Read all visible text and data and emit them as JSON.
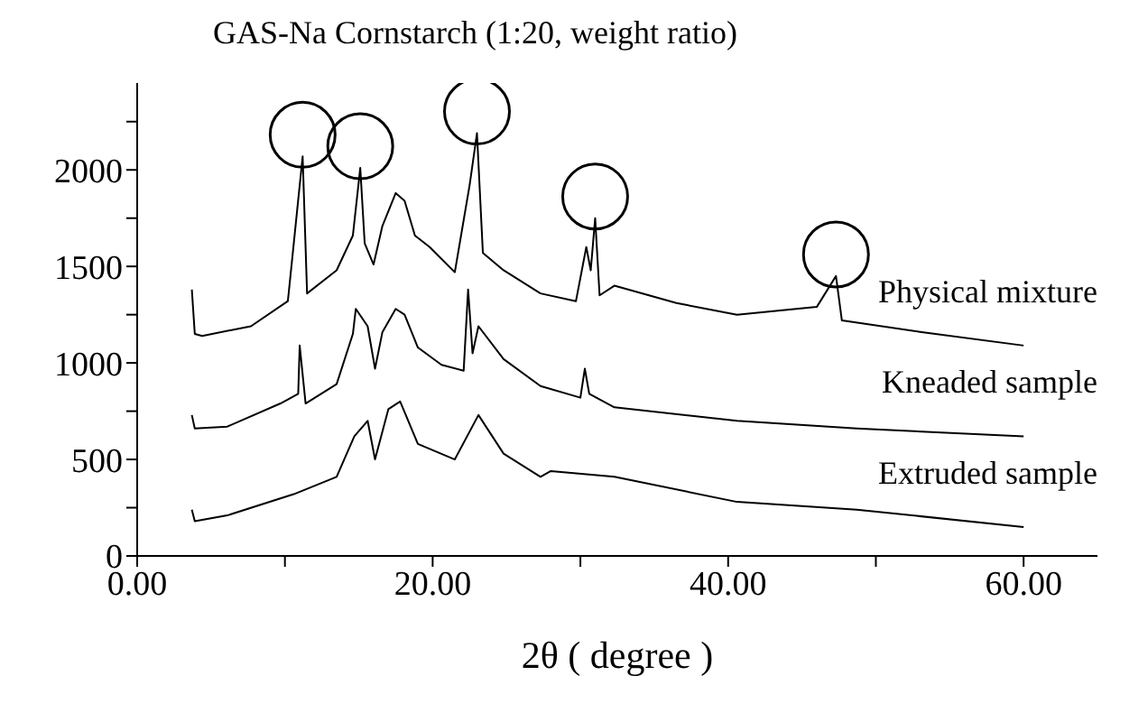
{
  "chart_data": {
    "type": "line",
    "title": "GAS-Na   Cornstarch (1:20, weight ratio)",
    "xlabel": "2θ ( degree )",
    "xlim": [
      0,
      65
    ],
    "xticks": [
      {
        "value": 0,
        "label": "0.00"
      },
      {
        "value": 10,
        "label": null
      },
      {
        "value": 20,
        "label": "20.00"
      },
      {
        "value": 30,
        "label": null
      },
      {
        "value": 40,
        "label": "40.00"
      },
      {
        "value": 50,
        "label": null
      },
      {
        "value": 60,
        "label": "60.00"
      }
    ],
    "ylim": [
      0,
      2450
    ],
    "yticks": [
      0,
      {
        "value": 250,
        "label": null
      },
      500,
      {
        "value": 750,
        "label": null
      },
      1000,
      {
        "value": 1250,
        "label": null
      },
      1500,
      {
        "value": 1750,
        "label": null
      },
      2000,
      {
        "value": 2250,
        "label": null
      }
    ],
    "grid": false,
    "legend": false,
    "marker": "none",
    "line_style": "solid",
    "series": [
      {
        "name": "Physical mixture",
        "color": "#000000",
        "x": [
          3.7,
          3.9,
          4.4,
          7.7,
          10.2,
          11.2,
          11.5,
          13.5,
          14.6,
          15.1,
          15.4,
          16,
          16.6,
          17.5,
          18.1,
          18.8,
          19.8,
          21.5,
          22.5,
          23,
          23.4,
          24.8,
          27.3,
          29.7,
          30.4,
          30.7,
          31,
          31.3,
          32.3,
          36.5,
          40.6,
          46,
          47.3,
          47.7,
          53.1,
          60
        ],
        "values": [
          1380,
          1150,
          1140,
          1190,
          1320,
          2070,
          1360,
          1480,
          1660,
          2010,
          1620,
          1510,
          1710,
          1880,
          1840,
          1660,
          1600,
          1470,
          1920,
          2190,
          1570,
          1480,
          1360,
          1320,
          1600,
          1480,
          1750,
          1350,
          1400,
          1310,
          1250,
          1290,
          1450,
          1220,
          1160,
          1090
        ]
      },
      {
        "name": "Kneaded sample",
        "color": "#000000",
        "x": [
          3.7,
          3.9,
          6.1,
          9.7,
          10.9,
          11,
          11.4,
          13.5,
          14.6,
          14.8,
          15.6,
          16.1,
          16.6,
          17.5,
          18.1,
          19,
          20.6,
          22.1,
          22.4,
          22.7,
          23.1,
          24.8,
          27.3,
          30,
          30.3,
          30.6,
          32.3,
          40.6,
          48.7,
          60
        ],
        "values": [
          730,
          660,
          670,
          790,
          840,
          1090,
          790,
          890,
          1150,
          1280,
          1190,
          970,
          1160,
          1280,
          1250,
          1080,
          990,
          960,
          1380,
          1050,
          1190,
          1020,
          880,
          820,
          970,
          840,
          770,
          700,
          660,
          620
        ]
      },
      {
        "name": "Extruded sample",
        "color": "#000000",
        "x": [
          3.7,
          3.9,
          6.1,
          10.6,
          13.5,
          14.7,
          15.6,
          16.1,
          17,
          17.8,
          19,
          21.5,
          23.1,
          24.8,
          27.3,
          28,
          32.3,
          40.6,
          48.7,
          60
        ],
        "values": [
          240,
          180,
          210,
          320,
          410,
          620,
          700,
          500,
          760,
          800,
          580,
          500,
          730,
          530,
          410,
          440,
          410,
          280,
          240,
          150
        ]
      }
    ]
  }
}
